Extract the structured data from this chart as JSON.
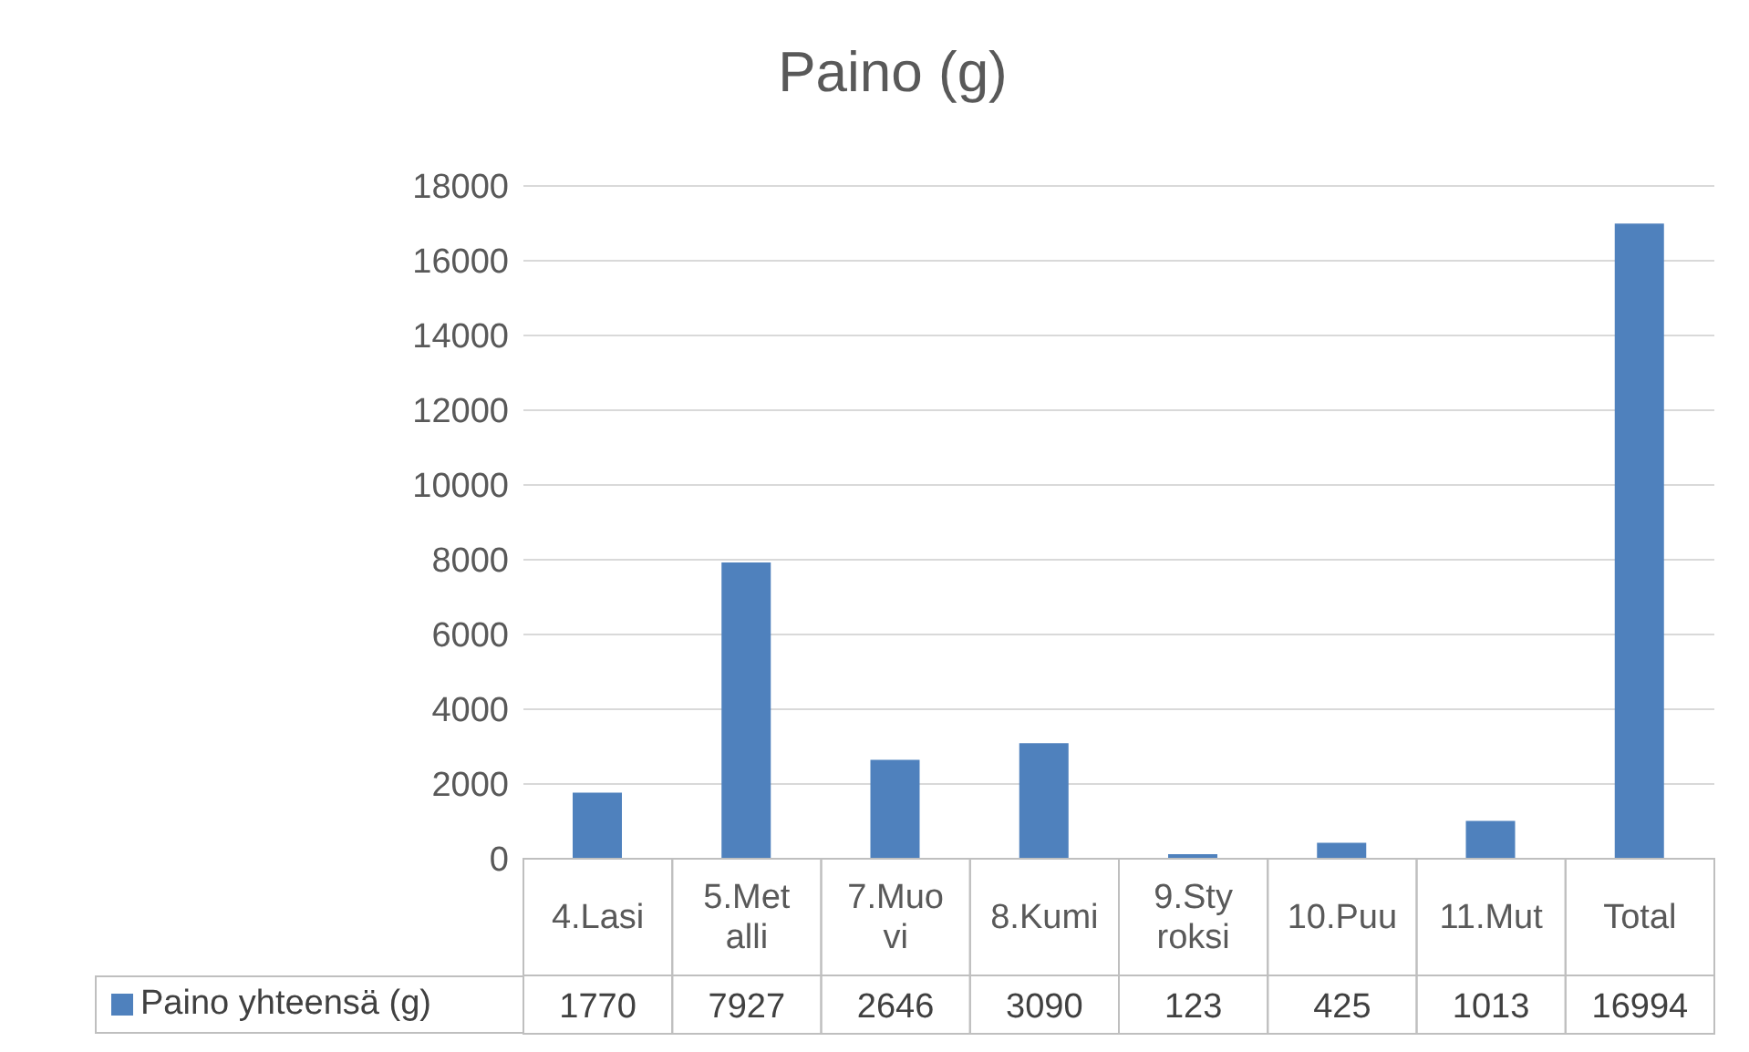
{
  "chart_data": {
    "type": "bar",
    "title": "Paino (g)",
    "categories": [
      "4.Lasi",
      "5.Metalli",
      "7.Muovi",
      "8.Kumi",
      "9.Styroksi",
      "10.Puu",
      "11.Mut",
      "Total"
    ],
    "series": [
      {
        "name": "Paino yhteensä (g)",
        "color": "#4f81bd",
        "values": [
          1770,
          7927,
          2646,
          3090,
          123,
          425,
          1013,
          16994
        ]
      }
    ],
    "ylim": [
      0,
      18000
    ],
    "yticks": [
      0,
      2000,
      4000,
      6000,
      8000,
      10000,
      12000,
      14000,
      16000,
      18000
    ],
    "grid": "y",
    "data_labels": true,
    "legend": "bottom"
  }
}
